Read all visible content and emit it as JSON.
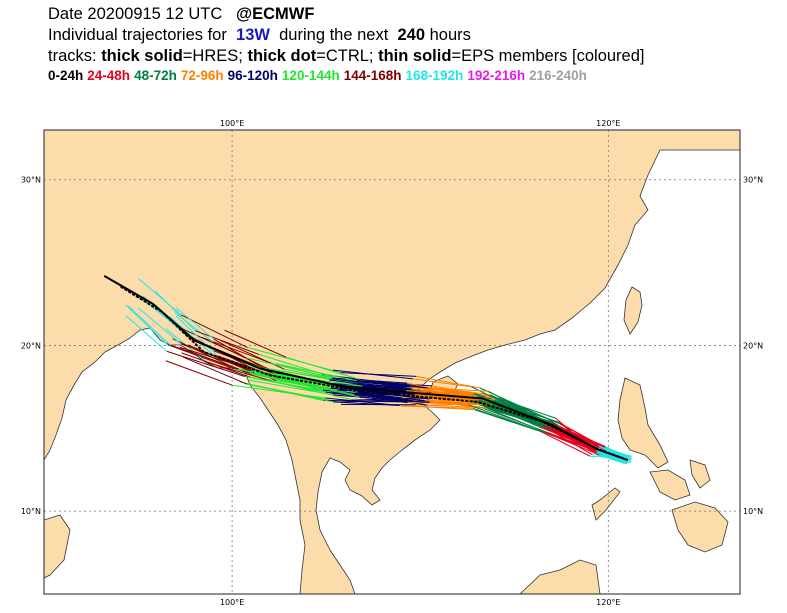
{
  "header": {
    "date_label": "Date 20200915 12 UTC",
    "org_label": "@ECMWF",
    "traj_prefix": "Individual trajectories for",
    "storm_id": "13W",
    "traj_middle": "during the next",
    "hours": "240",
    "hours_suffix": "hours",
    "tracks_prefix": "tracks:",
    "hres_key": "thick solid",
    "hres_val": "=HRES;",
    "ctrl_key": "thick dot",
    "ctrl_val": "=CTRL;",
    "eps_key": "thin solid",
    "eps_val": "=EPS members [coloured]"
  },
  "legend": [
    {
      "label": "0-24h",
      "color": "#000000"
    },
    {
      "label": "24-48h",
      "color": "#e6001a"
    },
    {
      "label": "48-72h",
      "color": "#008040"
    },
    {
      "label": "72-96h",
      "color": "#ff8000"
    },
    {
      "label": "96-120h",
      "color": "#000066"
    },
    {
      "label": "120-144h",
      "color": "#22e633"
    },
    {
      "label": "144-168h",
      "color": "#800000"
    },
    {
      "label": "168-192h",
      "color": "#22e6e6"
    },
    {
      "label": "192-216h",
      "color": "#e61ae6"
    },
    {
      "label": "216-240h",
      "color": "#a0a0a0"
    }
  ],
  "map": {
    "extent": {
      "lon_min": 90,
      "lon_max": 127,
      "lat_min": 5,
      "lat_max": 33
    },
    "land_color": "#fcdcaa",
    "sea_color": "#ffffff",
    "ticks": {
      "lon": [
        {
          "value": 100,
          "label": "100°E"
        },
        {
          "value": 120,
          "label": "120°E"
        }
      ],
      "lat": [
        {
          "value": 30,
          "label": "30°N"
        },
        {
          "value": 20,
          "label": "20°N"
        },
        {
          "value": 10,
          "label": "10°N"
        }
      ]
    }
  },
  "tracks": {
    "hres": [
      [
        121.0,
        13.1
      ],
      [
        119.5,
        13.7
      ],
      [
        117.0,
        15.2
      ],
      [
        113.3,
        16.8
      ],
      [
        110.0,
        17.1
      ],
      [
        106.0,
        17.5
      ],
      [
        101.5,
        18.6
      ],
      [
        98.0,
        20.3
      ],
      [
        95.8,
        22.5
      ],
      [
        93.2,
        24.2
      ]
    ],
    "ctrl": [
      [
        121.0,
        13.1
      ],
      [
        119.3,
        13.8
      ],
      [
        116.5,
        15.4
      ],
      [
        113.0,
        16.6
      ],
      [
        110.0,
        16.9
      ],
      [
        106.5,
        17.3
      ],
      [
        102.0,
        18.2
      ],
      [
        98.5,
        19.6
      ],
      [
        96.3,
        22.0
      ],
      [
        94.0,
        23.6
      ]
    ]
  }
}
